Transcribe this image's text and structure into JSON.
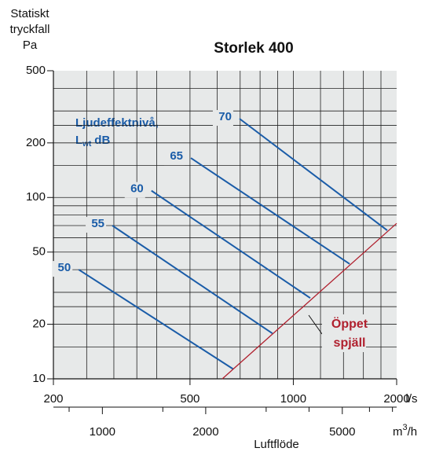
{
  "chart_data": {
    "type": "line",
    "title": "Storlek 400",
    "y_label_lines": [
      "Statiskt",
      "tryckfall",
      "Pa"
    ],
    "x_unit": "l/s",
    "x2_unit": {
      "base": "m",
      "sup": "3",
      "rest": "/h"
    },
    "x2_label": "Luftflöde",
    "legend_title": {
      "line1": "Ljudeffektnivå,",
      "symbol": "L",
      "subscript": "wt",
      "unit": "dB"
    },
    "log_x": true,
    "log_y": true,
    "grid": true,
    "xlim": [
      200,
      2000
    ],
    "ylim": [
      10,
      500
    ],
    "xticks": [
      200,
      500,
      1000,
      2000
    ],
    "yticks": [
      10,
      20,
      50,
      100,
      200,
      500
    ],
    "x_grid": [
      250,
      300,
      350,
      400,
      500,
      600,
      700,
      800,
      900,
      1000,
      1200,
      1400,
      1600,
      1800
    ],
    "y_grid": [
      15,
      20,
      25,
      30,
      40,
      50,
      60,
      70,
      80,
      90,
      100,
      150,
      200,
      250,
      300,
      400
    ],
    "x2lim": [
      720,
      7200
    ],
    "x2ticks": [
      1000,
      2000,
      5000
    ],
    "x2_minor_ticks": [
      800,
      1500,
      3000,
      4000,
      6000,
      7000
    ],
    "series": [
      {
        "name": "50",
        "color": "#1a5ca8",
        "x": [
          237,
          669
        ],
        "values": [
          40,
          11.3
        ]
      },
      {
        "name": "55",
        "color": "#1a5ca8",
        "x": [
          297,
          869
        ],
        "values": [
          70,
          17.8
        ]
      },
      {
        "name": "60",
        "color": "#1a5ca8",
        "x": [
          386,
          1120
        ],
        "values": [
          109,
          27.9
        ]
      },
      {
        "name": "65",
        "color": "#1a5ca8",
        "x": [
          503,
          1459
        ],
        "values": [
          165,
          43
        ]
      },
      {
        "name": "70",
        "color": "#1a5ca8",
        "x": [
          697,
          1877
        ],
        "values": [
          272,
          65.9
        ]
      }
    ],
    "damper": {
      "name_lines": [
        "Öppet",
        "spjäll"
      ],
      "color": "#b0202e",
      "x": [
        621,
        2000
      ],
      "values": [
        10,
        72
      ]
    }
  }
}
